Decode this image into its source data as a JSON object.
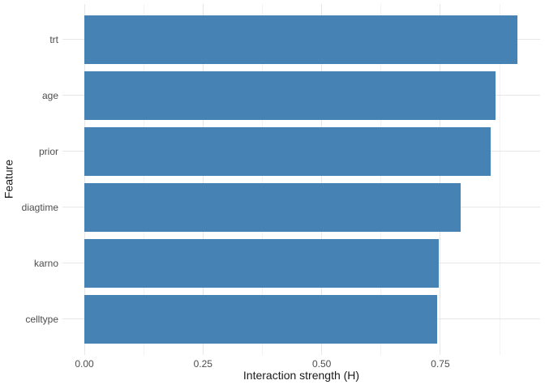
{
  "chart_data": {
    "type": "bar",
    "orientation": "horizontal",
    "title": "",
    "xlabel": "Interaction strength (H)",
    "ylabel": "Feature",
    "categories": [
      "trt",
      "age",
      "prior",
      "diagtime",
      "karno",
      "celltype"
    ],
    "values": [
      0.912,
      0.866,
      0.856,
      0.793,
      0.747,
      0.743
    ],
    "xlim": [
      -0.046,
      0.96
    ],
    "x_ticks": [
      {
        "value": 0.0,
        "label": "0.00"
      },
      {
        "value": 0.25,
        "label": "0.25"
      },
      {
        "value": 0.5,
        "label": "0.50"
      },
      {
        "value": 0.75,
        "label": "0.75"
      }
    ],
    "x_minor_ticks": [
      0.125,
      0.375,
      0.625,
      0.875
    ],
    "grid": "major+minor",
    "legend": "none",
    "colors": {
      "bar_fill": "#4682B4",
      "grid_major": "#E7E7E7",
      "grid_minor": "#F3F3F3",
      "tick_text": "#4D4D4D",
      "title_text": "#1A1A1A",
      "background": "#FFFFFF"
    }
  }
}
